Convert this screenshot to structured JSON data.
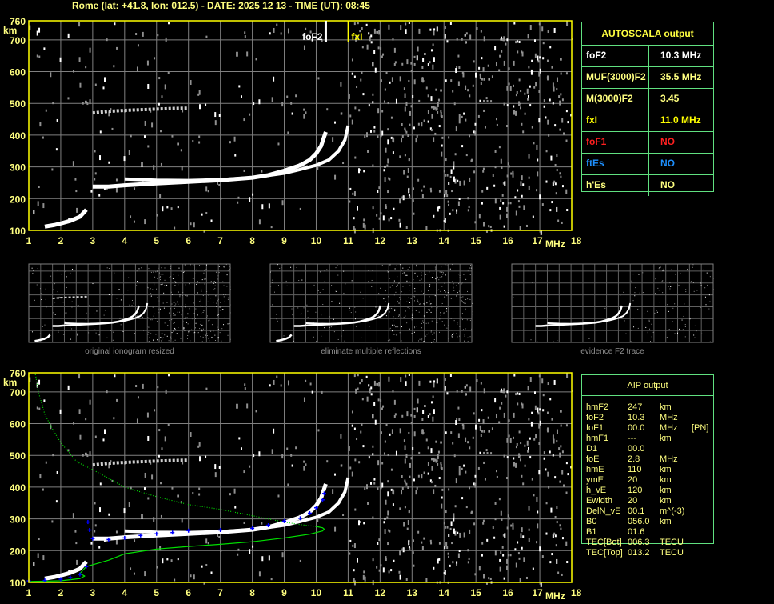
{
  "header": {
    "title": "Rome (lat: +41.8, lon: 012.5) - DATE: 2025 12 13 - TIME (UT): 08:45"
  },
  "colors": {
    "axis": "#ffff00",
    "grid": "#808080",
    "o_trace": "#ffffff",
    "profile": "#00e000",
    "aip_points": "#0000ff",
    "table_border": "#60e080"
  },
  "autoscala": {
    "title": "AUTOSCALA output",
    "rows": [
      {
        "key": "foF2",
        "value": "10.3 MHz",
        "color": "#ffffff"
      },
      {
        "key": "MUF(3000)F2",
        "value": "35.5 MHz",
        "color": "#ffff80"
      },
      {
        "key": "M(3000)F2",
        "value": "3.45",
        "color": "#ffff80"
      },
      {
        "key": "fxI",
        "value": "11.0 MHz",
        "color": "#ffff00"
      },
      {
        "key": "foF1",
        "value": "NO",
        "color": "#ff2020"
      },
      {
        "key": "ftEs",
        "value": "NO",
        "color": "#1e90ff"
      },
      {
        "key": "h'Es",
        "value": "NO",
        "color": "#ffff80"
      }
    ]
  },
  "aip": {
    "title": "AIP output",
    "rows": [
      {
        "name": "hmF2",
        "value": "247",
        "unit": "km",
        "extra": ""
      },
      {
        "name": "foF2",
        "value": "10.3",
        "unit": "MHz",
        "extra": ""
      },
      {
        "name": "foF1",
        "value": "00.0",
        "unit": "MHz",
        "extra": "[PN]"
      },
      {
        "name": "hmF1",
        "value": "---",
        "unit": "km",
        "extra": ""
      },
      {
        "name": "D1",
        "value": "00.0",
        "unit": "",
        "extra": ""
      },
      {
        "name": "foE",
        "value": "2.8",
        "unit": "MHz",
        "extra": ""
      },
      {
        "name": "hmE",
        "value": "110",
        "unit": "km",
        "extra": ""
      },
      {
        "name": "ymE",
        "value": "20",
        "unit": "km",
        "extra": ""
      },
      {
        "name": "h_vE",
        "value": "120",
        "unit": "km",
        "extra": ""
      },
      {
        "name": "Ewidth",
        "value": "20",
        "unit": "km",
        "extra": ""
      },
      {
        "name": "DelN_vE",
        "value": "00.1",
        "unit": "m^(-3)",
        "extra": ""
      },
      {
        "name": "B0",
        "value": "056.0",
        "unit": "km",
        "extra": ""
      },
      {
        "name": "B1",
        "value": "01.6",
        "unit": "",
        "extra": ""
      },
      {
        "name": "TEC[Bot]",
        "value": "006.3",
        "unit": "TECU",
        "extra": ""
      },
      {
        "name": "TEC[Top]",
        "value": "013.2",
        "unit": "TECU",
        "extra": ""
      }
    ]
  },
  "thumbnails": [
    {
      "caption": "original ionogram resized"
    },
    {
      "caption": "eliminate multiple reflections"
    },
    {
      "caption": "evidence F2 trace"
    }
  ],
  "markers": {
    "foF2": {
      "label": "foF2",
      "freq": 10.3
    },
    "fxI": {
      "label": "fxI",
      "freq": 11.0
    }
  },
  "chart_data": {
    "type": "scatter",
    "xlabel": "MHz",
    "ylabel": "km",
    "xlim": [
      1,
      18
    ],
    "ylim": [
      100,
      760
    ],
    "xticks": [
      "1",
      "2",
      "3",
      "4",
      "5",
      "6",
      "7",
      "8",
      "9",
      "10",
      "11",
      "12",
      "13",
      "14",
      "15",
      "16",
      "17",
      "18"
    ],
    "yticks": [
      "760",
      "700",
      "600",
      "500",
      "400",
      "300",
      "200",
      "100"
    ],
    "grid": true,
    "series": [
      {
        "key": "o_trace",
        "x": [
          3.0,
          3.5,
          4,
          5,
          6,
          7,
          8,
          8.5,
          9,
          9.5,
          9.8,
          10.0,
          10.15,
          10.3
        ],
        "y": [
          238,
          238,
          242,
          248,
          253,
          258,
          266,
          274,
          288,
          305,
          322,
          342,
          365,
          410
        ]
      },
      {
        "key": "x_trace",
        "x": [
          4.0,
          5,
          6,
          7,
          8,
          9,
          9.5,
          10,
          10.4,
          10.7,
          10.9,
          11.0
        ],
        "y": [
          262,
          258,
          257,
          260,
          266,
          280,
          292,
          305,
          322,
          350,
          385,
          430
        ]
      },
      {
        "key": "e_trace",
        "x": [
          1.5,
          1.8,
          2.0,
          2.3,
          2.6,
          2.8
        ],
        "y": [
          112,
          117,
          122,
          130,
          143,
          165
        ]
      },
      {
        "key": "multiple_echo",
        "x": [
          3.0,
          3.5,
          4.0,
          4.5,
          5.0,
          5.5,
          6.0
        ],
        "y": [
          470,
          475,
          478,
          480,
          482,
          484,
          485
        ]
      },
      {
        "key": "aip_points",
        "x": [
          1.0,
          1.5,
          2.0,
          2.3,
          2.6,
          2.8,
          2.85,
          2.9,
          3.0,
          3.5,
          4.0,
          4.5,
          5.0,
          5.5,
          6.0,
          7.0,
          8.0,
          8.5,
          9.0,
          9.5,
          9.8,
          10.0,
          10.2,
          10.25
        ],
        "y": [
          105,
          106,
          110,
          115,
          125,
          150,
          290,
          265,
          238,
          235,
          240,
          248,
          253,
          257,
          263,
          265,
          270,
          280,
          293,
          302,
          318,
          335,
          360,
          380
        ]
      },
      {
        "key": "profile_bottomside",
        "x": [
          1.0,
          2.0,
          2.6,
          2.75,
          2.6,
          2.8,
          3.5,
          4.0,
          5.0,
          6.0,
          7.0,
          8.0,
          9.0,
          9.8,
          10.2,
          10.25,
          10.2,
          10.0
        ],
        "y": [
          103,
          105,
          112,
          120,
          128,
          150,
          170,
          190,
          205,
          213,
          220,
          228,
          240,
          252,
          262,
          268,
          272,
          276
        ]
      },
      {
        "key": "profile_topside",
        "x": [
          10.0,
          9.5,
          9.0,
          8.0,
          7.0,
          6.0,
          5.0,
          4.0,
          3.0,
          2.5,
          2.0,
          1.7,
          1.5,
          1.3,
          1.2
        ],
        "y": [
          276,
          282,
          290,
          310,
          330,
          345,
          370,
          400,
          455,
          480,
          540,
          590,
          630,
          700,
          760
        ]
      }
    ]
  }
}
